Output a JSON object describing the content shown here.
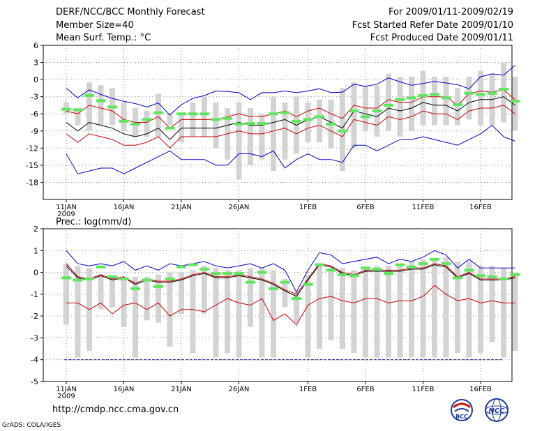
{
  "header": {
    "title": "DERF/NCC/BCC Monthly Forecast",
    "member_size": "Member Size=40",
    "variable": "Mean Surf. Temp.: °C",
    "period": "For 2009/01/11-2009/02/19",
    "started": "Fcst Started Refer Date 2009/01/10",
    "produced": "Fcst Produced Date 2009/01/11"
  },
  "footer": {
    "url": "http://cmdp.ncc.cma.gov.cn",
    "credit": "GrADS: COLA/IGES",
    "logo_left": "BCC",
    "logo_right": "NCC"
  },
  "colors": {
    "box": "#d3d3d3",
    "mean": "#000000",
    "spread": "#cc0000",
    "extreme": "#0000cc",
    "observed": "#5fe65f",
    "grid": "#888888"
  },
  "chart_data": [
    {
      "type": "line",
      "title": "Mean Surf. Temp.: °C",
      "x_start": "2009-01-11",
      "days": 40,
      "x_ticks": [
        {
          "day": 0,
          "label": "11JAN",
          "sub": "2009"
        },
        {
          "day": 5,
          "label": "16JAN"
        },
        {
          "day": 10,
          "label": "21JAN"
        },
        {
          "day": 15,
          "label": "26JAN"
        },
        {
          "day": 21,
          "label": "1FEB"
        },
        {
          "day": 26,
          "label": "6FEB"
        },
        {
          "day": 31,
          "label": "11FEB"
        },
        {
          "day": 36,
          "label": "16FEB"
        }
      ],
      "ylim": [
        -21,
        6
      ],
      "yticks": [
        6,
        3,
        0,
        -3,
        -6,
        -9,
        -12,
        -15,
        -18
      ],
      "box_low": [
        -6,
        -8,
        -9,
        -8,
        -8,
        -9,
        -10,
        -10,
        -10,
        -8,
        -11,
        -10,
        -10,
        -12,
        -14,
        -17.5,
        -15,
        -14,
        -16,
        -14,
        -13,
        -11,
        -11,
        -12,
        -16,
        -12,
        -9,
        -10,
        -9,
        -10,
        -9,
        -8,
        -8,
        -8,
        -8,
        -7,
        -8,
        -8,
        -7.5,
        -9
      ],
      "box_high": [
        -4,
        -5,
        -0.5,
        -1,
        -1.5,
        -4,
        -5,
        -5.5,
        -2.5,
        -6,
        -6,
        -4,
        -3,
        -4,
        -5,
        -4,
        -5,
        -6,
        -3,
        -4,
        -3,
        -4,
        -3.5,
        -3.5,
        -1.5,
        -0.5,
        -1,
        -1,
        1,
        0.5,
        0.5,
        1.5,
        0.5,
        0.5,
        -1.5,
        0.5,
        1.5,
        1,
        3,
        0.5
      ],
      "green": [
        -5.2,
        -5.3,
        -2.8,
        -3.7,
        -4.8,
        -7.3,
        -7.8,
        -7,
        -5.8,
        -8.5,
        -6,
        -6,
        -6,
        -7,
        -6.8,
        -7.8,
        -7.7,
        -7.7,
        -6,
        -5.8,
        -7.3,
        -7,
        -6.5,
        -7.8,
        -9,
        -5.5,
        -6.5,
        -5.5,
        -4.5,
        -3.5,
        -3.2,
        -2.8,
        -2.6,
        -3.2,
        -4.4,
        -2.4,
        -2.6,
        -2.4,
        -1.7,
        -3.8
      ],
      "series": [
        {
          "name": "max",
          "color": "#0000cc",
          "values": [
            -1.5,
            -3.2,
            -1.8,
            -2.6,
            -3.3,
            -3.8,
            -4.2,
            -4.8,
            -4.1,
            -6.2,
            -4.4,
            -3.3,
            -2.8,
            -2,
            -2.1,
            -2.3,
            -3.5,
            -2.3,
            -2.3,
            -2,
            -2.3,
            -2,
            -1.6,
            -2.3,
            -2.2,
            -0.8,
            -1.2,
            -0.8,
            0.3,
            -0.4,
            -1,
            -0.7,
            -0.3,
            -0.6,
            -0.9,
            -1.6,
            0.5,
            1,
            0.8,
            2.5
          ]
        },
        {
          "name": "upper",
          "color": "#cc0000",
          "values": [
            -5.5,
            -6,
            -4.5,
            -5,
            -5.5,
            -7,
            -7.5,
            -7.5,
            -6.5,
            -8.5,
            -7,
            -7,
            -7,
            -7,
            -6.5,
            -6,
            -6.5,
            -6.5,
            -6,
            -5.5,
            -6.5,
            -5.5,
            -5,
            -6,
            -6.8,
            -4.5,
            -5,
            -5,
            -3.5,
            -4,
            -4,
            -3,
            -3,
            -3,
            -4.5,
            -2.5,
            -2,
            -2.2,
            -1.8,
            -3.5
          ]
        },
        {
          "name": "mean",
          "color": "#000000",
          "values": [
            -7.5,
            -9,
            -7.5,
            -8,
            -8.5,
            -9.5,
            -10,
            -9.5,
            -8.5,
            -10.5,
            -8.5,
            -8.5,
            -8.5,
            -8.5,
            -8,
            -7.5,
            -8,
            -8,
            -7.5,
            -7,
            -8,
            -7,
            -6.5,
            -7.5,
            -8.5,
            -5.5,
            -6,
            -6.5,
            -5,
            -5.5,
            -5,
            -4,
            -4.5,
            -4.5,
            -5.5,
            -4,
            -3.5,
            -3.5,
            -3,
            -4.5
          ]
        },
        {
          "name": "lower",
          "color": "#cc0000",
          "values": [
            -9.5,
            -11,
            -9.5,
            -10,
            -10.5,
            -11.5,
            -11.5,
            -11,
            -10,
            -12,
            -10,
            -10,
            -10,
            -10,
            -9.5,
            -9,
            -9.5,
            -9.5,
            -9,
            -8.5,
            -9.5,
            -8.5,
            -8,
            -9,
            -10,
            -7,
            -7.5,
            -8,
            -6.5,
            -7,
            -6.5,
            -5.5,
            -6,
            -6,
            -7,
            -5.5,
            -5,
            -5,
            -4.5,
            -6
          ]
        },
        {
          "name": "min",
          "color": "#0000cc",
          "values": [
            -13,
            -16.5,
            -16,
            -15.5,
            -15.5,
            -16.5,
            -15.5,
            -14.5,
            -13.5,
            -12.5,
            -14,
            -14,
            -14,
            -15,
            -15,
            -13,
            -13,
            -13.5,
            -12.5,
            -15.5,
            -14,
            -13,
            -14,
            -14,
            -14.5,
            -11.5,
            -11.5,
            -12.5,
            -11.5,
            -10.5,
            -10.5,
            -10,
            -10.5,
            -11,
            -11.5,
            -10.5,
            -9.5,
            -8,
            -10,
            -10.8
          ]
        }
      ]
    },
    {
      "type": "line",
      "title": "Prec.: log(mm/d)",
      "x_start": "2009-01-11",
      "days": 40,
      "x_ticks": [
        {
          "day": 0,
          "label": "11JAN",
          "sub": "2009"
        },
        {
          "day": 5,
          "label": "16JAN"
        },
        {
          "day": 10,
          "label": "21JAN"
        },
        {
          "day": 15,
          "label": "26JAN"
        },
        {
          "day": 21,
          "label": "1FEB"
        },
        {
          "day": 26,
          "label": "6FEB"
        },
        {
          "day": 31,
          "label": "11FEB"
        },
        {
          "day": 36,
          "label": "16FEB"
        }
      ],
      "ylim": [
        -5,
        2
      ],
      "yticks": [
        2,
        1,
        0,
        -1,
        -2,
        -3,
        -4,
        -5
      ],
      "floor_line": -4,
      "box_low": [
        -2.4,
        -3.9,
        -3.6,
        -1.7,
        -1.6,
        -2.5,
        -3.9,
        -2.2,
        -2.3,
        -3.4,
        -1.9,
        -3.7,
        -1.9,
        -3.9,
        -3.7,
        -3.9,
        -2.5,
        -3.9,
        -3.9,
        -1.6,
        -2.3,
        -3.9,
        -3.5,
        -3.1,
        -3.5,
        -3.7,
        -3.9,
        -3.9,
        -3.9,
        -3.9,
        -3.9,
        -3.9,
        -3.9,
        -3.9,
        -3.7,
        -3.9,
        -3.7,
        -3.2,
        -3.9,
        -3.6
      ],
      "box_high": [
        0.4,
        0.3,
        0.2,
        -0.1,
        -0.2,
        -0.3,
        -0.2,
        -0.2,
        -0.1,
        0.0,
        0.0,
        0.1,
        0.3,
        0.2,
        0.1,
        0.1,
        0.2,
        0.2,
        0.1,
        -0.3,
        -0.9,
        -0.1,
        0.3,
        0.2,
        0.2,
        0.1,
        0.2,
        0.3,
        0.3,
        0.4,
        0.5,
        0.6,
        0.6,
        0.7,
        0.5,
        0.5,
        0.3,
        0.3,
        0.2,
        0.0
      ],
      "green": [
        -0.25,
        -0.35,
        -0.3,
        0.25,
        -0.2,
        -0.3,
        -0.75,
        -0.35,
        -0.65,
        -0.3,
        0.25,
        0.35,
        0.15,
        -0.05,
        -0.05,
        -0.05,
        -0.45,
        0.0,
        -0.75,
        -0.45,
        -1.2,
        -0.55,
        0.35,
        0.1,
        -0.1,
        -0.15,
        0.2,
        0.15,
        -0.05,
        0.35,
        0.25,
        0.4,
        0.6,
        0.4,
        -0.25,
        0.1,
        -0.15,
        -0.2,
        -0.3,
        -0.1
      ],
      "series": [
        {
          "name": "max",
          "color": "#0000cc",
          "values": [
            1.0,
            0.4,
            0.3,
            0.4,
            0.3,
            0.5,
            0.1,
            0.3,
            0.1,
            0.4,
            0.3,
            0.4,
            0.5,
            0.3,
            0.2,
            0.3,
            0.4,
            0.2,
            0.4,
            0.1,
            -0.9,
            0.1,
            0.9,
            0.8,
            0.4,
            0.5,
            0.6,
            0.7,
            0.4,
            0.6,
            0.5,
            0.7,
            1.0,
            0.8,
            0.2,
            0.6,
            0.2,
            0.2,
            0.2,
            0.2
          ]
        },
        {
          "name": "upper",
          "color": "#cc0000",
          "values": [
            0.4,
            -0.2,
            -0.3,
            -0.1,
            -0.3,
            -0.2,
            -0.5,
            -0.3,
            -0.4,
            -0.4,
            -0.3,
            -0.1,
            0.0,
            -0.2,
            -0.2,
            -0.1,
            -0.2,
            -0.3,
            -0.5,
            -0.8,
            -1.0,
            -0.3,
            0.4,
            0.3,
            0.0,
            -0.1,
            0.1,
            0.1,
            0.1,
            0.1,
            0.2,
            0.2,
            0.4,
            0.3,
            -0.2,
            0.0,
            -0.3,
            -0.3,
            -0.3,
            -0.2
          ]
        },
        {
          "name": "mean",
          "color": "#000000",
          "values": [
            0.3,
            -0.25,
            -0.35,
            -0.15,
            -0.35,
            -0.25,
            -0.55,
            -0.35,
            -0.45,
            -0.45,
            -0.35,
            -0.15,
            -0.05,
            -0.25,
            -0.25,
            -0.15,
            -0.25,
            -0.35,
            -0.55,
            -0.85,
            -1.1,
            -0.35,
            0.35,
            0.25,
            -0.05,
            -0.15,
            0.05,
            0.05,
            0.05,
            0.05,
            0.15,
            0.15,
            0.35,
            0.25,
            -0.25,
            -0.05,
            -0.35,
            -0.35,
            -0.35,
            -0.25
          ]
        },
        {
          "name": "lower",
          "color": "#cc0000",
          "values": [
            -1.4,
            -1.4,
            -1.7,
            -1.4,
            -1.9,
            -1.5,
            -1.4,
            -1.7,
            -1.4,
            -2.0,
            -1.7,
            -1.7,
            -1.8,
            -1.5,
            -1.2,
            -1.4,
            -1.5,
            -1.2,
            -2.2,
            -1.9,
            -2.4,
            -1.5,
            -1.2,
            -1.1,
            -1.3,
            -1.4,
            -1.2,
            -1.2,
            -1.4,
            -1.3,
            -1.3,
            -1.1,
            -0.6,
            -1.0,
            -1.3,
            -1.2,
            -1.4,
            -1.3,
            -1.4,
            -1.4
          ]
        }
      ]
    }
  ]
}
